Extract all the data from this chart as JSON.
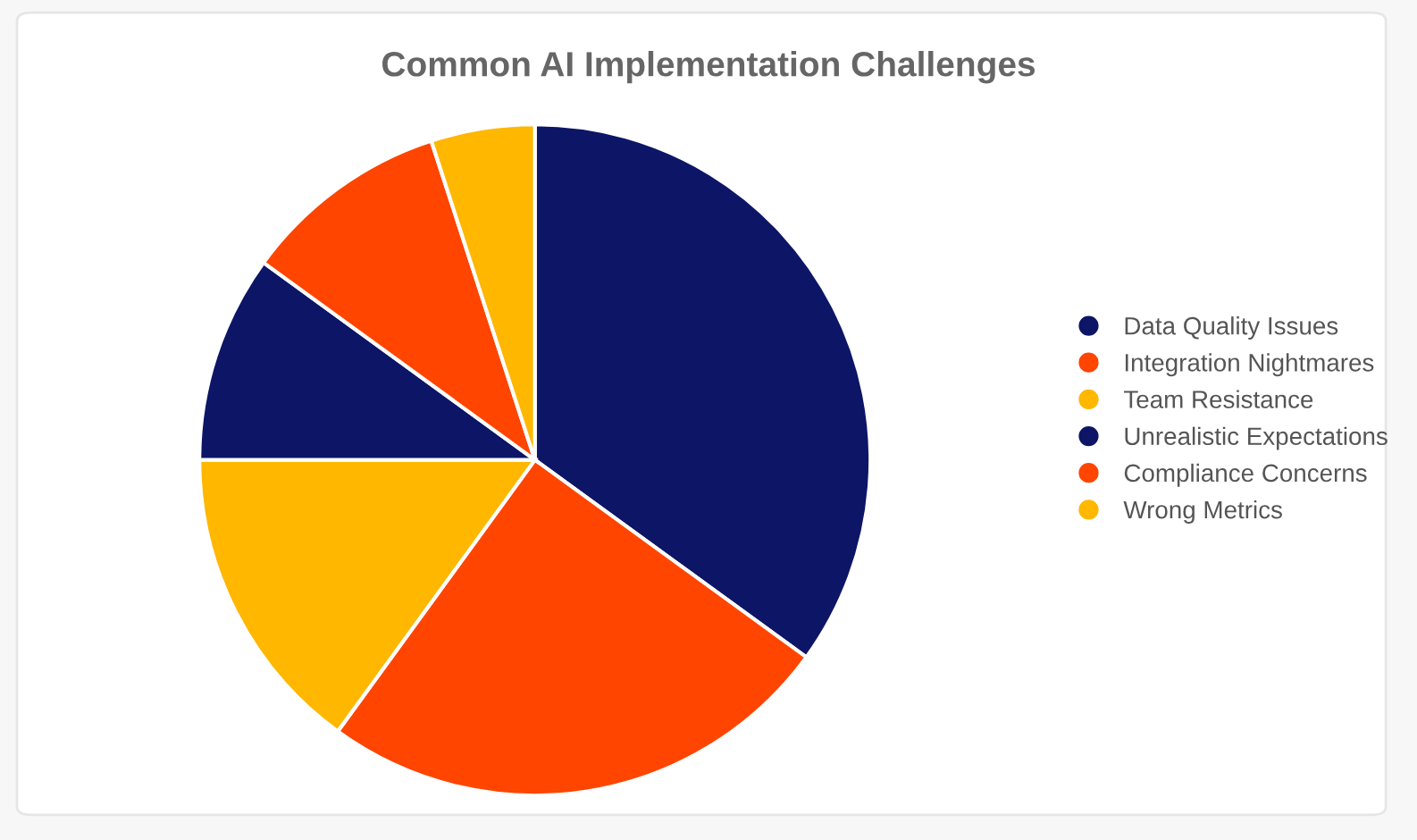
{
  "chart_data": {
    "type": "pie",
    "title": "Common AI Implementation Challenges",
    "categories": [
      "Data Quality Issues",
      "Integration Nightmares",
      "Team Resistance",
      "Unrealistic Expectations",
      "Compliance Concerns",
      "Wrong Metrics"
    ],
    "values": [
      35,
      25,
      15,
      10,
      10,
      5
    ],
    "colors": [
      "#0d1566",
      "#ff4500",
      "#ffb700",
      "#0d1566",
      "#ff4500",
      "#ffb700"
    ],
    "legend": "right"
  }
}
